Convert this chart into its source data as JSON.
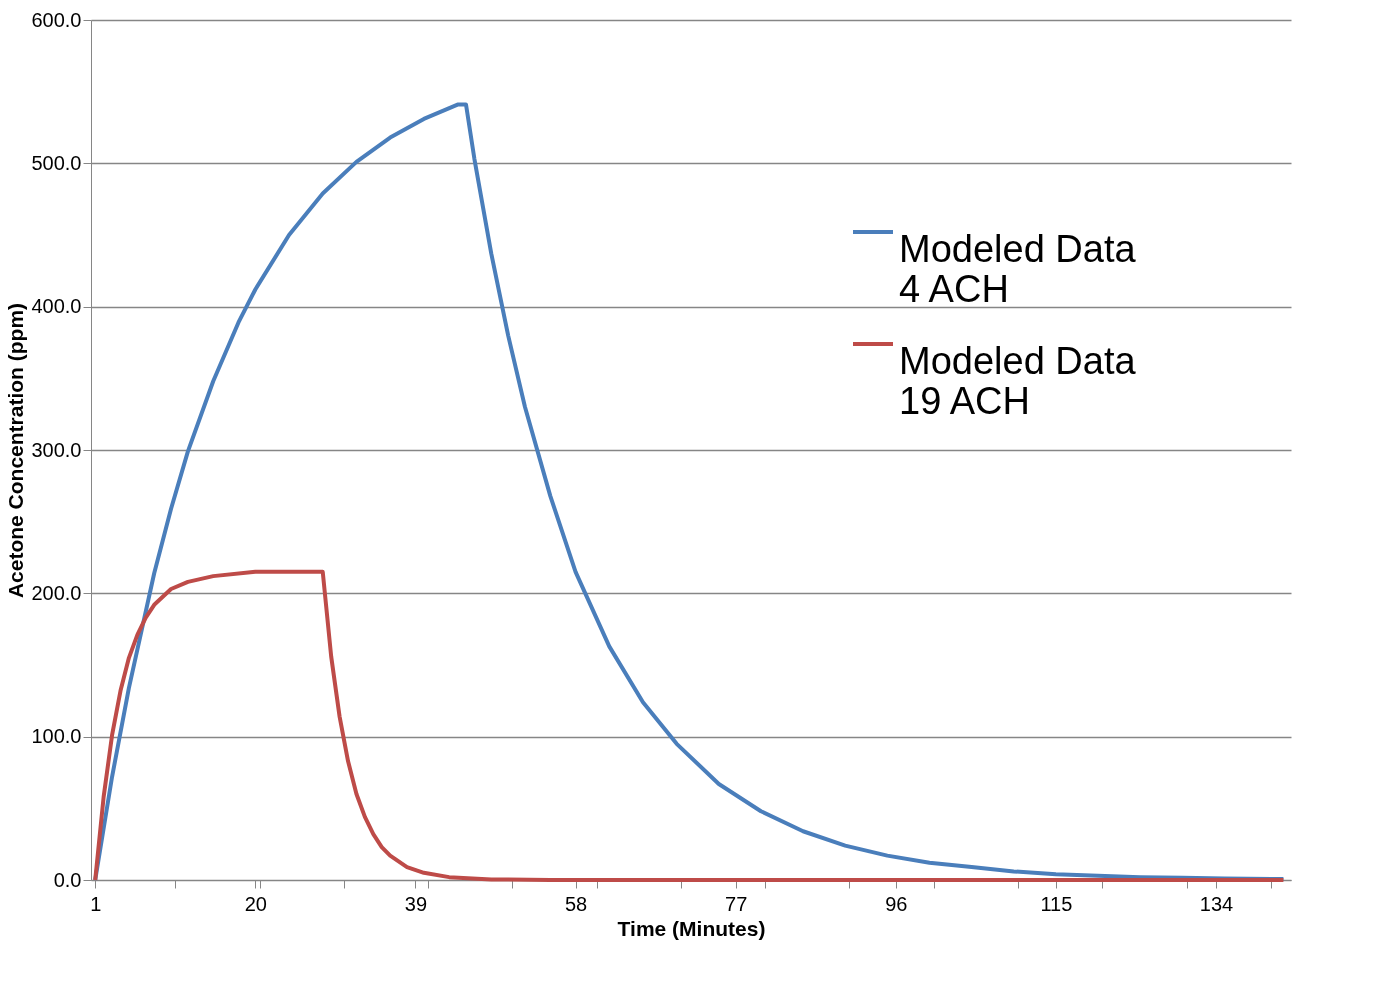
{
  "chart_data": {
    "type": "line",
    "xlabel": "Time (Minutes)",
    "ylabel": "Acetone Concentration (ppm)",
    "xlim": [
      0.5,
      142.9
    ],
    "ylim": [
      0,
      600
    ],
    "xticks": [
      1,
      20,
      39,
      58,
      77,
      96,
      115,
      134,
      {
        "value": 10.5,
        "label": null
      },
      {
        "value": 20.5,
        "label": null
      },
      {
        "value": 30.5,
        "label": null
      },
      {
        "value": 40.5,
        "label": null
      },
      {
        "value": 50.5,
        "label": null
      },
      {
        "value": 60.5,
        "label": null
      },
      {
        "value": 70.5,
        "label": null
      },
      {
        "value": 80.5,
        "label": null
      },
      {
        "value": 90.5,
        "label": null
      },
      {
        "value": 100.5,
        "label": null
      },
      {
        "value": 110.5,
        "label": null
      },
      {
        "value": 120.5,
        "label": null
      },
      {
        "value": 130.5,
        "label": null
      },
      {
        "value": 140.5,
        "label": null
      }
    ],
    "yticks": [
      {
        "value": 0,
        "label": "0.0"
      },
      {
        "value": 100,
        "label": "100.0"
      },
      {
        "value": 200,
        "label": "200.0"
      },
      {
        "value": 300,
        "label": "300.0"
      },
      {
        "value": 400,
        "label": "400.0"
      },
      {
        "value": 500,
        "label": "500.0"
      },
      {
        "value": 600,
        "label": "600.0"
      }
    ],
    "grid": "y",
    "legend": "top right",
    "marker": "none",
    "line_style": "solid",
    "series": [
      {
        "name": "Modeled Data 4 ACH",
        "color": "#4a7ebb",
        "x": [
          1,
          3,
          5,
          8,
          10,
          12,
          15,
          18,
          20,
          24,
          28,
          32,
          36,
          40,
          44,
          45,
          46,
          48,
          50,
          52,
          55,
          58,
          62,
          66,
          70,
          75,
          80,
          85,
          90,
          95,
          100,
          105,
          110,
          115,
          120,
          125,
          130,
          135,
          142
        ],
        "values": [
          0,
          72,
          134,
          214,
          259,
          299,
          348,
          389,
          412,
          450,
          479,
          501,
          518,
          531,
          541,
          541,
          503,
          437,
          380,
          330,
          268,
          215,
          163,
          124,
          95,
          67,
          48,
          34,
          24,
          17,
          12,
          9,
          6,
          4,
          3,
          2,
          1.5,
          1,
          0.7
        ]
      },
      {
        "name": "Modeled Data 19 ACH",
        "color": "#be4b48",
        "x": [
          1,
          2,
          3,
          4,
          5,
          6,
          7,
          8,
          10,
          12,
          15,
          20,
          28,
          29,
          30,
          31,
          32,
          33,
          34,
          35,
          36,
          38,
          40,
          43,
          48,
          55,
          142
        ],
        "values": [
          0,
          58,
          101,
          132,
          155,
          171,
          183,
          192,
          203,
          208,
          212,
          215,
          215,
          156,
          114,
          83,
          60,
          44,
          32,
          23,
          17,
          9,
          5,
          2,
          0.4,
          0,
          0
        ]
      }
    ]
  }
}
